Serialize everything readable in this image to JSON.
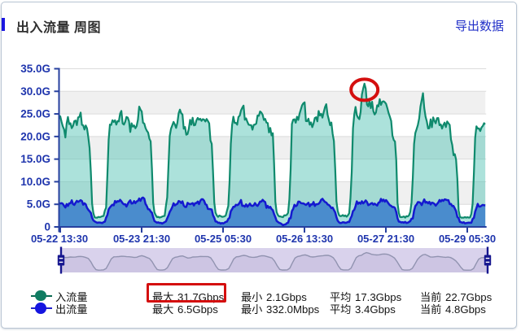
{
  "header": {
    "title": "出入流量 周图",
    "export_label": "导出数据",
    "accent_color": "#1a16e0",
    "export_color": "#2230c8"
  },
  "chart_data": {
    "type": "area",
    "title": "出入流量 周图",
    "x_labels": [
      "05-22 13:30",
      "05-23 21:30",
      "05-25 05:30",
      "05-26 13:30",
      "05-27 21:30",
      "05-29 05:30"
    ],
    "y_labels": [
      "35.0G",
      "30.0G",
      "25.0G",
      "20.0G",
      "15.0G",
      "10.0G",
      "5.0G",
      "0"
    ],
    "ylim": [
      0,
      35
    ],
    "y_step": 5,
    "grid": {
      "band_color": "#f0f0f0",
      "line_color": "#dcdcdc",
      "alternating_bands": true
    },
    "axis_color": "#27409f",
    "tick_label_color": "#1f35ad",
    "series": [
      {
        "name": "入流量",
        "unit": "Gbps",
        "line_color": "#0f8a6d",
        "fill_color": "rgba(72,190,176,0.45)",
        "values": [
          24.64,
          24.44,
          23.23,
          22.23,
          21.59,
          19.79,
          22.89,
          24.32,
          22.74,
          22.93,
          21.85,
          22.35,
          23.4,
          23.54,
          22.52,
          24.22,
          24.35,
          25.3,
          22.58,
          22.47,
          21.54,
          22.44,
          21.81,
          19.85,
          17.48,
          12.21,
          5.13,
          3.04,
          2.1,
          2.05,
          2.05,
          2.21,
          2.14,
          2.25,
          2.37,
          2.43,
          3.59,
          4.26,
          11.42,
          19.27,
          22.65,
          22.56,
          23.6,
          23.23,
          23.59,
          22.63,
          23.42,
          23.33,
          25.06,
          25.66,
          22.87,
          22.64,
          23.26,
          24.33,
          24.18,
          23.38,
          21.0,
          22.93,
          22.19,
          22.45,
          21.83,
          22.31,
          23.71,
          26.62,
          25.97,
          25.53,
          23.05,
          22.87,
          21.88,
          21.27,
          20.88,
          19.54,
          18.93,
          12.97,
          5.31,
          3.2,
          2.58,
          2.15,
          2.23,
          2.07,
          2.14,
          2.28,
          2.38,
          2.44,
          4.65,
          6.52,
          13.45,
          20.12,
          21.73,
          22.46,
          23.23,
          22.67,
          21.9,
          23.04,
          25.13,
          25.95,
          25.15,
          24.89,
          21.72,
          22.11,
          20.39,
          20.53,
          21.71,
          23.7,
          22.61,
          24.15,
          22.47,
          22.55,
          23.59,
          24.11,
          23.72,
          23.92,
          23.46,
          23.85,
          23.72,
          23.32,
          23.88,
          23.42,
          22.92,
          19.12,
          18.37,
          12.27,
          5.4,
          3.16,
          2.53,
          2.22,
          2.51,
          2.4,
          2.23,
          2.25,
          2.33,
          2.52,
          3.6,
          4.63,
          9.9,
          18.38,
          22.52,
          24.38,
          23.01,
          23.02,
          22.62,
          24.32,
          24.64,
          25.76,
          26.37,
          26.84,
          23.7,
          24.01,
          23.24,
          22.62,
          22.54,
          22.53,
          21.51,
          22.58,
          22.65,
          22.86,
          24.65,
          24.58,
          25.55,
          25.3,
          24.81,
          23.66,
          23.9,
          23.08,
          22.99,
          20.91,
          21.9,
          20.26,
          20.73,
          14.02,
          5.55,
          3.27,
          2.62,
          2.32,
          2.31,
          2.21,
          2.16,
          2.56,
          2.54,
          2.67,
          3.12,
          6.13,
          12.71,
          22.78,
          23.71,
          23.82,
          23.06,
          24.38,
          23.67,
          25.04,
          25.97,
          26.91,
          27.35,
          27.56,
          23.42,
          23.39,
          23.94,
          22.62,
          23.12,
          22.07,
          22.88,
          24.1,
          24.26,
          23.36,
          25.65,
          24.66,
          25.03,
          24.18,
          25.41,
          26.5,
          27.15,
          24.86,
          23.74,
          22.51,
          23.1,
          20.6,
          18.99,
          13.05,
          5.64,
          3.52,
          2.63,
          2.37,
          2.42,
          2.62,
          2.39,
          2.54,
          2.25,
          2.56,
          3.03,
          6.38,
          12.12,
          21.83,
          24.85,
          26.55,
          24.74,
          24.16,
          23.83,
          25.46,
          29.25,
          30.6,
          31.7,
          30.6,
          27.06,
          26.66,
          27.97,
          26.29,
          27.69,
          25.6,
          24.87,
          25.3,
          26.9,
          26.66,
          28.27,
          26.99,
          27.69,
          27.8,
          27.59,
          27.23,
          26.27,
          25.17,
          24.38,
          23.44,
          20.21,
          19.25,
          18.89,
          14.74,
          5.28,
          3.12,
          2.2,
          2.16,
          2.2,
          2.31,
          2.05,
          2.38,
          2.31,
          2.55,
          3.3,
          5.41,
          10.85,
          18.36,
          20.78,
          21.64,
          22.58,
          23.99,
          26.61,
          28.09,
          29.58,
          26.31,
          24.42,
          23.36,
          21.79,
          21.84,
          23.8,
          22.05,
          24.23,
          23.46,
          22.92,
          24.05,
          24.1,
          22.5,
          22.67,
          21.75,
          22.56,
          23.08,
          22.08,
          23.33,
          22.94,
          22.56,
          19.33,
          18.12,
          15.86,
          16.1,
          14.88,
          10.67,
          3.63,
          2.26,
          2.05,
          2.05,
          2.05,
          2.17,
          2.05,
          2.15,
          2.05,
          2.1,
          2.9,
          5.14,
          11.81,
          19.7,
          22.26,
          21.75,
          21.79,
          21.21,
          22.0,
          22.33,
          22.95,
          22.7
        ]
      },
      {
        "name": "出流量",
        "unit": "Gbps",
        "line_color": "#1419cf",
        "fill_color": "#4a8ccd",
        "values": [
          5.22,
          5.18,
          5.26,
          5.11,
          4.66,
          4.29,
          5.06,
          4.64,
          5.21,
          5.23,
          5.88,
          5.05,
          4.86,
          5.34,
          5.76,
          5.53,
          5.71,
          5.92,
          5.73,
          4.91,
          5.22,
          4.99,
          4.21,
          3.8,
          3.47,
          3.11,
          2.02,
          1.44,
          1.22,
          1.05,
          0.92,
          0.96,
          0.96,
          0.92,
          0.85,
          1.06,
          1.15,
          2.04,
          2.63,
          3.9,
          4.31,
          4.64,
          4.91,
          4.77,
          5.74,
          5.4,
          5.71,
          5.63,
          5.99,
          5.66,
          5.24,
          4.99,
          5.02,
          4.5,
          5.1,
          5.56,
          5.89,
          5.16,
          5.21,
          5.71,
          5.26,
          5.63,
          5.75,
          6.28,
          5.76,
          6.34,
          6.5,
          6.24,
          5.07,
          4.61,
          3.92,
          3.88,
          3.42,
          3.12,
          2.16,
          1.29,
          1.1,
          0.94,
          1.02,
          0.87,
          0.9,
          0.74,
          0.9,
          1.05,
          1.22,
          1.89,
          2.52,
          3.32,
          3.8,
          4.41,
          5.23,
          4.75,
          4.97,
          5.12,
          5.72,
          5.62,
          5.27,
          5.66,
          4.73,
          4.42,
          4.42,
          5.32,
          5.12,
          5.02,
          5.13,
          5.26,
          4.74,
          5.26,
          5.26,
          5.61,
          5.04,
          5.78,
          6.12,
          6.11,
          5.79,
          5.02,
          4.86,
          3.99,
          3.95,
          3.91,
          3.86,
          2.59,
          2.04,
          1.2,
          1.17,
          0.89,
          0.94,
          0.73,
          0.86,
          0.77,
          0.91,
          1.11,
          1.17,
          1.76,
          2.02,
          3.48,
          3.93,
          4.45,
          4.45,
          4.9,
          4.81,
          4.97,
          5.39,
          5.95,
          4.66,
          4.69,
          4.49,
          4.99,
          4.47,
          4.79,
          5.16,
          4.72,
          4.64,
          4.78,
          5.28,
          4.82,
          4.65,
          5.08,
          5.61,
          5.6,
          6.0,
          5.69,
          5.51,
          4.23,
          4.64,
          4.22,
          4.45,
          3.96,
          3.7,
          2.84,
          2.15,
          1.33,
          1.11,
          0.9,
          0.8,
          0.62,
          0.33,
          0.52,
          0.54,
          0.82,
          0.91,
          1.89,
          1.92,
          3.5,
          3.97,
          4.9,
          4.58,
          4.77,
          5.6,
          5.59,
          5.28,
          5.2,
          5.2,
          5.03,
          4.86,
          5.1,
          5.33,
          4.55,
          4.99,
          4.95,
          5.51,
          4.63,
          5.02,
          5.01,
          5.12,
          5.43,
          6.01,
          6.21,
          5.83,
          5.51,
          5.4,
          4.98,
          4.86,
          4.57,
          4.14,
          4.27,
          3.75,
          3.23,
          2.14,
          1.37,
          1.02,
          0.85,
          0.9,
          1.03,
          0.99,
          0.9,
          0.95,
          1.11,
          1.07,
          1.84,
          2.43,
          3.51,
          3.78,
          4.57,
          5.66,
          5.11,
          5.39,
          5.13,
          5.68,
          5.19,
          5.49,
          5.86,
          5.51,
          4.81,
          4.94,
          5.15,
          5.28,
          4.93,
          5.14,
          4.93,
          4.74,
          5.33,
          5.49,
          6.21,
          5.69,
          6.04,
          5.59,
          5.93,
          5.57,
          5.15,
          4.8,
          4.65,
          4.39,
          4.42,
          4.18,
          3.31,
          1.93,
          1.17,
          1.13,
          0.99,
          1.04,
          0.93,
          1.11,
          0.88,
          0.93,
          1.09,
          1.29,
          1.83,
          1.85,
          3.58,
          4.63,
          4.96,
          5.5,
          5.47,
          5.31,
          4.82,
          5.47,
          6.08,
          5.37,
          5.53,
          5.21,
          5.55,
          4.97,
          5.37,
          5.3,
          5.08,
          4.7,
          5.07,
          5.39,
          5.96,
          5.62,
          5.98,
          5.77,
          6.09,
          6.03,
          5.91,
          5.91,
          5.04,
          5.08,
          4.61,
          4.63,
          4.09,
          3.5,
          2.2,
          1.96,
          1.09,
          1.03,
          0.91,
          1.04,
          0.78,
          0.85,
          0.9,
          0.94,
          0.92,
          0.92,
          1.74,
          2.01,
          3.38,
          4.17,
          5.09,
          4.51,
          4.5,
          4.71,
          4.87,
          4.78,
          4.8
        ]
      }
    ],
    "annotations": {
      "peak_circle": {
        "series": "入流量",
        "value": 31.7,
        "color": "#d40f0f"
      },
      "stat_box": {
        "target": "入流量最大",
        "value": "31.7Gbps",
        "color": "#d40f0f"
      }
    }
  },
  "brush": {
    "band_color": "#d9d2ec",
    "line_color": "#9193b0",
    "area_color": "rgba(125,114,172,0.13)",
    "handle_color": "#16168f"
  },
  "legend": {
    "rows": [
      {
        "name": "入流量",
        "marker_color": "#107c62",
        "line_color": "#0a6b52",
        "stats": [
          {
            "label": "最大",
            "value": "31.7Gbps"
          },
          {
            "label": "最小",
            "value": "2.1Gbps"
          },
          {
            "label": "平均",
            "value": "17.3Gbps"
          },
          {
            "label": "当前",
            "value": "22.7Gbps"
          }
        ]
      },
      {
        "name": "出流量",
        "marker_color": "#1515e0",
        "line_color": "#2222cc",
        "stats": [
          {
            "label": "最大",
            "value": "6.5Gbps"
          },
          {
            "label": "最小",
            "value": "332.0Mbps"
          },
          {
            "label": "平均",
            "value": "3.4Gbps"
          },
          {
            "label": "当前",
            "value": "4.8Gbps"
          }
        ]
      }
    ]
  }
}
